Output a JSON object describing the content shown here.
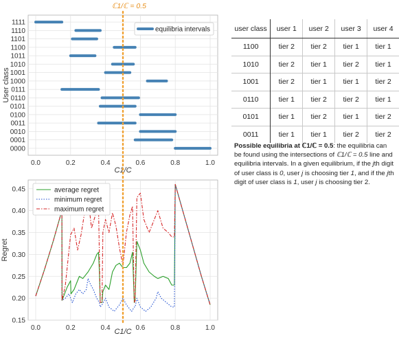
{
  "accent": "#e8901c",
  "colors": {
    "interval": "#4682b4",
    "average": "#2ca02c",
    "minimum": "#1f4fd0",
    "maximum": "#d62728",
    "threshold": "#f0a030"
  },
  "chart_data": [
    {
      "type": "interval",
      "title": "",
      "xlabel": "C1/C",
      "ylabel": "User class",
      "xlim": [
        0,
        1
      ],
      "grid": true,
      "legend": {
        "position": "top-right",
        "entries": [
          "equilibria intervals"
        ]
      },
      "x_ticks": [
        "0.0",
        "0.2",
        "0.4",
        "0.6",
        "0.8",
        "1.0"
      ],
      "categories": [
        "1111",
        "1110",
        "1101",
        "1100",
        "1011",
        "1010",
        "1001",
        "1000",
        "0111",
        "0110",
        "0101",
        "0100",
        "0011",
        "0010",
        "0001",
        "0000"
      ],
      "intervals": [
        [
          [
            0.0,
            0.15
          ]
        ],
        [
          [
            0.23,
            0.37
          ]
        ],
        [
          [
            0.21,
            0.35
          ]
        ],
        [
          [
            0.45,
            0.57
          ]
        ],
        [
          [
            0.2,
            0.34
          ]
        ],
        [
          [
            0.44,
            0.56
          ]
        ],
        [
          [
            0.4,
            0.54
          ]
        ],
        [
          [
            0.64,
            0.75
          ]
        ],
        [
          [
            0.15,
            0.36
          ]
        ],
        [
          [
            0.38,
            0.59
          ]
        ],
        [
          [
            0.37,
            0.57
          ]
        ],
        [
          [
            0.6,
            0.8
          ]
        ],
        [
          [
            0.36,
            0.57
          ]
        ],
        [
          [
            0.6,
            0.8
          ]
        ],
        [
          [
            0.57,
            0.78
          ]
        ],
        [
          [
            0.8,
            1.0
          ]
        ]
      ],
      "vline": {
        "x": 0.5,
        "label": "ℂ1/ℂ = 0.5"
      }
    },
    {
      "type": "line",
      "title": "",
      "xlabel": "C1/C",
      "ylabel": "Regret",
      "xlim": [
        0,
        1
      ],
      "ylim": [
        0.15,
        0.47
      ],
      "grid": true,
      "legend": {
        "position": "top-left"
      },
      "x_ticks": [
        "0.0",
        "0.2",
        "0.4",
        "0.6",
        "0.8",
        "1.0"
      ],
      "y_ticks": [
        "0.15",
        "0.20",
        "0.25",
        "0.30",
        "0.35",
        "0.40",
        "0.45"
      ],
      "series": [
        {
          "name": "average regret",
          "points": [
            [
              0.0,
              0.205
            ],
            [
              0.05,
              0.265
            ],
            [
              0.1,
              0.33
            ],
            [
              0.15,
              0.4
            ],
            [
              0.151,
              0.195
            ],
            [
              0.18,
              0.225
            ],
            [
              0.2,
              0.24
            ],
            [
              0.202,
              0.21
            ],
            [
              0.22,
              0.22
            ],
            [
              0.23,
              0.23
            ],
            [
              0.25,
              0.25
            ],
            [
              0.27,
              0.245
            ],
            [
              0.3,
              0.26
            ],
            [
              0.33,
              0.28
            ],
            [
              0.35,
              0.3
            ],
            [
              0.36,
              0.305
            ],
            [
              0.365,
              0.26
            ],
            [
              0.37,
              0.19
            ],
            [
              0.38,
              0.19
            ],
            [
              0.385,
              0.215
            ],
            [
              0.4,
              0.23
            ],
            [
              0.42,
              0.22
            ],
            [
              0.44,
              0.26
            ],
            [
              0.46,
              0.275
            ],
            [
              0.48,
              0.28
            ],
            [
              0.5,
              0.27
            ],
            [
              0.52,
              0.27
            ],
            [
              0.54,
              0.28
            ],
            [
              0.555,
              0.305
            ],
            [
              0.565,
              0.19
            ],
            [
              0.57,
              0.195
            ],
            [
              0.58,
              0.33
            ],
            [
              0.6,
              0.31
            ],
            [
              0.62,
              0.28
            ],
            [
              0.65,
              0.26
            ],
            [
              0.68,
              0.25
            ],
            [
              0.7,
              0.245
            ],
            [
              0.73,
              0.25
            ],
            [
              0.76,
              0.245
            ],
            [
              0.78,
              0.23
            ],
            [
              0.795,
              0.23
            ],
            [
              0.8,
              0.46
            ],
            [
              0.85,
              0.39
            ],
            [
              0.9,
              0.32
            ],
            [
              0.95,
              0.25
            ],
            [
              1.0,
              0.185
            ]
          ]
        },
        {
          "name": "minimum regret",
          "points": [
            [
              0.0,
              0.205
            ],
            [
              0.05,
              0.265
            ],
            [
              0.1,
              0.33
            ],
            [
              0.15,
              0.4
            ],
            [
              0.151,
              0.195
            ],
            [
              0.17,
              0.2
            ],
            [
              0.19,
              0.21
            ],
            [
              0.21,
              0.19
            ],
            [
              0.23,
              0.21
            ],
            [
              0.25,
              0.22
            ],
            [
              0.27,
              0.21
            ],
            [
              0.29,
              0.22
            ],
            [
              0.3,
              0.245
            ],
            [
              0.31,
              0.235
            ],
            [
              0.33,
              0.22
            ],
            [
              0.35,
              0.2
            ],
            [
              0.365,
              0.19
            ],
            [
              0.37,
              0.18
            ],
            [
              0.38,
              0.185
            ],
            [
              0.4,
              0.2
            ],
            [
              0.42,
              0.18
            ],
            [
              0.45,
              0.17
            ],
            [
              0.48,
              0.185
            ],
            [
              0.5,
              0.2
            ],
            [
              0.52,
              0.185
            ],
            [
              0.55,
              0.17
            ],
            [
              0.565,
              0.18
            ],
            [
              0.57,
              0.18
            ],
            [
              0.58,
              0.2
            ],
            [
              0.6,
              0.18
            ],
            [
              0.63,
              0.17
            ],
            [
              0.66,
              0.18
            ],
            [
              0.69,
              0.2
            ],
            [
              0.7,
              0.215
            ],
            [
              0.72,
              0.2
            ],
            [
              0.75,
              0.19
            ],
            [
              0.78,
              0.18
            ],
            [
              0.795,
              0.18
            ],
            [
              0.8,
              0.46
            ],
            [
              0.85,
              0.39
            ],
            [
              0.9,
              0.32
            ],
            [
              0.95,
              0.25
            ],
            [
              1.0,
              0.185
            ]
          ]
        },
        {
          "name": "maximum regret",
          "points": [
            [
              0.0,
              0.205
            ],
            [
              0.05,
              0.265
            ],
            [
              0.1,
              0.33
            ],
            [
              0.15,
              0.4
            ],
            [
              0.151,
              0.195
            ],
            [
              0.17,
              0.23
            ],
            [
              0.2,
              0.345
            ],
            [
              0.22,
              0.36
            ],
            [
              0.24,
              0.31
            ],
            [
              0.26,
              0.345
            ],
            [
              0.28,
              0.395
            ],
            [
              0.3,
              0.43
            ],
            [
              0.32,
              0.36
            ],
            [
              0.35,
              0.4
            ],
            [
              0.36,
              0.41
            ],
            [
              0.365,
              0.3
            ],
            [
              0.37,
              0.19
            ],
            [
              0.38,
              0.19
            ],
            [
              0.385,
              0.35
            ],
            [
              0.4,
              0.38
            ],
            [
              0.42,
              0.35
            ],
            [
              0.44,
              0.395
            ],
            [
              0.46,
              0.365
            ],
            [
              0.48,
              0.315
            ],
            [
              0.5,
              0.275
            ],
            [
              0.52,
              0.35
            ],
            [
              0.54,
              0.39
            ],
            [
              0.555,
              0.41
            ],
            [
              0.565,
              0.19
            ],
            [
              0.57,
              0.195
            ],
            [
              0.58,
              0.43
            ],
            [
              0.6,
              0.44
            ],
            [
              0.62,
              0.38
            ],
            [
              0.65,
              0.35
            ],
            [
              0.68,
              0.38
            ],
            [
              0.7,
              0.4
            ],
            [
              0.73,
              0.36
            ],
            [
              0.76,
              0.35
            ],
            [
              0.78,
              0.34
            ],
            [
              0.795,
              0.34
            ],
            [
              0.8,
              0.46
            ],
            [
              0.85,
              0.39
            ],
            [
              0.9,
              0.32
            ],
            [
              0.95,
              0.25
            ],
            [
              1.0,
              0.185
            ]
          ]
        }
      ],
      "vline": {
        "x": 0.5
      }
    }
  ],
  "table": {
    "headers": [
      "user class",
      "user 1",
      "user 2",
      "user 3",
      "user 4"
    ],
    "rows": [
      [
        "1100",
        "tier 2",
        "tier 2",
        "tier 1",
        "tier 1"
      ],
      [
        "1010",
        "tier 2",
        "tier 1",
        "tier 2",
        "tier 1"
      ],
      [
        "1001",
        "tier 2",
        "tier 1",
        "tier 1",
        "tier 2"
      ],
      [
        "0110",
        "tier 1",
        "tier 2",
        "tier 2",
        "tier 1"
      ],
      [
        "0101",
        "tier 1",
        "tier 2",
        "tier 1",
        "tier 2"
      ],
      [
        "0011",
        "tier 1",
        "tier 1",
        "tier 2",
        "tier 2"
      ]
    ]
  },
  "caption": {
    "bold": "Possible equilibria at ℂ1/ℂ = 0.5",
    "p1": ": the equilibria can be found using the intersections of ",
    "e1": "ℂ1/ℂ = 0.5",
    "p2": " line and equilibria intervals. In a given equilibrium, if the ",
    "e2": "j",
    "p3": "th digit of user class is ",
    "e3": "0",
    "p4": ", user ",
    "e4": "j",
    "p5": " is choosing tier ",
    "e5": "1",
    "p6": ", and if the ",
    "e6": "j",
    "p7": "th digit of user class is  ",
    "e7": "1",
    "p8": ", user ",
    "e8": "j",
    "p9": " is choosing tier 2."
  }
}
